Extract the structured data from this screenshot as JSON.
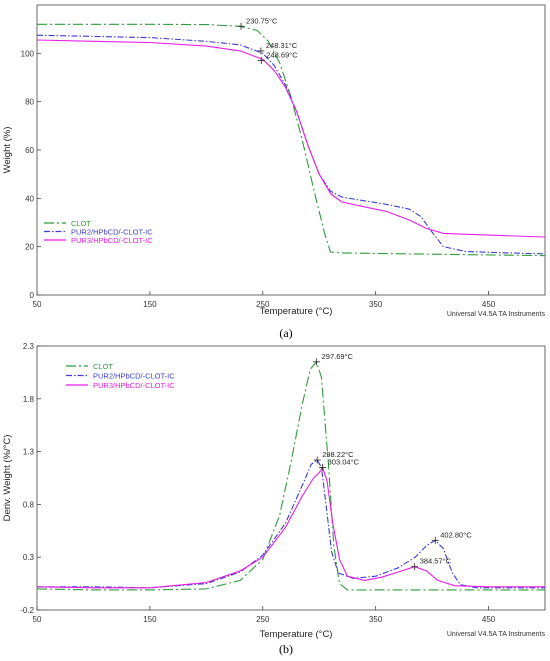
{
  "chart_data": [
    {
      "id": "a",
      "type": "line",
      "xlabel": "Temperature (°C)",
      "ylabel": "Weight (%)",
      "xlim": [
        50,
        500
      ],
      "ylim": [
        0,
        120
      ],
      "xticks": [
        50,
        150,
        250,
        350,
        450
      ],
      "yticks": [
        0,
        20,
        40,
        60,
        80,
        100
      ],
      "grid": false,
      "legend_position": "left",
      "footer": "Universal V4.5A TA Instruments",
      "sublabel": "(a)",
      "series": [
        {
          "name": "CLOT",
          "color": "#2e9c3a",
          "dash": "long-dash-dot",
          "points": [
            [
              50,
              112.0
            ],
            [
              100,
              112.0
            ],
            [
              150,
              112.0
            ],
            [
              200,
              111.9
            ],
            [
              230,
              111.2
            ],
            [
              245,
              109.5
            ],
            [
              255,
              105.0
            ],
            [
              265,
              96.0
            ],
            [
              275,
              82.0
            ],
            [
              285,
              64.0
            ],
            [
              295,
              44.0
            ],
            [
              305,
              25.0
            ],
            [
              310,
              17.8
            ],
            [
              320,
              17.4
            ],
            [
              350,
              17.2
            ],
            [
              400,
              16.9
            ],
            [
              450,
              16.6
            ],
            [
              500,
              16.3
            ]
          ]
        },
        {
          "name": "PUR2/HPbCD/-CLOT-IC",
          "color": "#3b3bd6",
          "dash": "dash-dot",
          "points": [
            [
              50,
              107.5
            ],
            [
              100,
              107.0
            ],
            [
              150,
              106.5
            ],
            [
              200,
              105.0
            ],
            [
              230,
              103.5
            ],
            [
              250,
              100.0
            ],
            [
              260,
              95.0
            ],
            [
              270,
              87.0
            ],
            [
              280,
              76.0
            ],
            [
              290,
              62.0
            ],
            [
              300,
              50.0
            ],
            [
              310,
              43.0
            ],
            [
              320,
              40.5
            ],
            [
              340,
              39.0
            ],
            [
              360,
              37.5
            ],
            [
              380,
              35.5
            ],
            [
              390,
              32.5
            ],
            [
              400,
              26.0
            ],
            [
              410,
              20.0
            ],
            [
              430,
              18.0
            ],
            [
              460,
              17.5
            ],
            [
              500,
              17.0
            ]
          ]
        },
        {
          "name": "PUR3/HPbCD/-CLOT-IC",
          "color": "#e61ee6",
          "dash": "solid",
          "points": [
            [
              50,
              105.5
            ],
            [
              100,
              105.0
            ],
            [
              150,
              104.5
            ],
            [
              200,
              103.0
            ],
            [
              230,
              101.0
            ],
            [
              250,
              97.5
            ],
            [
              260,
              93.0
            ],
            [
              270,
              86.0
            ],
            [
              280,
              76.0
            ],
            [
              290,
              62.0
            ],
            [
              300,
              50.0
            ],
            [
              310,
              42.0
            ],
            [
              320,
              38.5
            ],
            [
              340,
              36.5
            ],
            [
              360,
              34.5
            ],
            [
              380,
              31.0
            ],
            [
              395,
              27.5
            ],
            [
              410,
              25.5
            ],
            [
              450,
              24.8
            ],
            [
              500,
              24.0
            ]
          ]
        }
      ],
      "annotations": [
        {
          "text": "230.75°C",
          "x": 230.75,
          "y": 111.2
        },
        {
          "text": "248.31°C",
          "x": 248.31,
          "y": 101.0
        },
        {
          "text": "248.69°C",
          "x": 248.69,
          "y": 97.0
        }
      ]
    },
    {
      "id": "b",
      "type": "line",
      "xlabel": "Temperature (°C)",
      "ylabel": "Deriv. Weight (%/°C)",
      "xlim": [
        50,
        500
      ],
      "ylim": [
        -0.2,
        2.3
      ],
      "xticks": [
        50,
        150,
        250,
        350,
        450
      ],
      "yticks": [
        -0.2,
        0.3,
        0.8,
        1.3,
        1.8,
        2.3
      ],
      "grid": false,
      "legend_position": "top-left",
      "footer": "Universal V4.5A TA Instruments",
      "sublabel": "(b)",
      "series": [
        {
          "name": "CLOT",
          "color": "#2e9c3a",
          "dash": "long-dash-dot",
          "points": [
            [
              50,
              0.0
            ],
            [
              100,
              -0.01
            ],
            [
              150,
              -0.01
            ],
            [
              200,
              0.0
            ],
            [
              230,
              0.08
            ],
            [
              250,
              0.28
            ],
            [
              265,
              0.7
            ],
            [
              275,
              1.2
            ],
            [
              285,
              1.75
            ],
            [
              292,
              2.08
            ],
            [
              297.69,
              2.15
            ],
            [
              302,
              2.0
            ],
            [
              308,
              1.2
            ],
            [
              313,
              0.4
            ],
            [
              318,
              0.05
            ],
            [
              325,
              -0.01
            ],
            [
              350,
              -0.01
            ],
            [
              400,
              -0.01
            ],
            [
              500,
              -0.01
            ]
          ]
        },
        {
          "name": "PUR2/HPbCD/-CLOT-IC",
          "color": "#3b3bd6",
          "dash": "dash-dot",
          "points": [
            [
              50,
              0.02
            ],
            [
              100,
              0.02
            ],
            [
              150,
              0.01
            ],
            [
              200,
              0.05
            ],
            [
              230,
              0.16
            ],
            [
              250,
              0.32
            ],
            [
              270,
              0.62
            ],
            [
              285,
              0.98
            ],
            [
              293,
              1.18
            ],
            [
              298.22,
              1.22
            ],
            [
              302,
              1.15
            ],
            [
              306,
              0.8
            ],
            [
              311,
              0.35
            ],
            [
              317,
              0.15
            ],
            [
              330,
              0.1
            ],
            [
              350,
              0.12
            ],
            [
              370,
              0.2
            ],
            [
              385,
              0.3
            ],
            [
              395,
              0.41
            ],
            [
              402.8,
              0.46
            ],
            [
              410,
              0.38
            ],
            [
              418,
              0.15
            ],
            [
              425,
              0.04
            ],
            [
              440,
              0.01
            ],
            [
              500,
              0.01
            ]
          ]
        },
        {
          "name": "PUR3/HPbCD/-CLOT-IC",
          "color": "#e61ee6",
          "dash": "solid",
          "points": [
            [
              50,
              0.02
            ],
            [
              100,
              0.01
            ],
            [
              150,
              0.01
            ],
            [
              200,
              0.06
            ],
            [
              230,
              0.17
            ],
            [
              250,
              0.3
            ],
            [
              270,
              0.58
            ],
            [
              285,
              0.88
            ],
            [
              295,
              1.05
            ],
            [
              300,
              1.1
            ],
            [
              303.04,
              1.15
            ],
            [
              307,
              1.02
            ],
            [
              312,
              0.62
            ],
            [
              318,
              0.28
            ],
            [
              325,
              0.12
            ],
            [
              340,
              0.08
            ],
            [
              355,
              0.11
            ],
            [
              370,
              0.16
            ],
            [
              384.57,
              0.21
            ],
            [
              395,
              0.17
            ],
            [
              405,
              0.08
            ],
            [
              420,
              0.03
            ],
            [
              450,
              0.02
            ],
            [
              500,
              0.02
            ]
          ]
        }
      ],
      "annotations": [
        {
          "text": "297.69°C",
          "x": 297.69,
          "y": 2.15
        },
        {
          "text": "298.22°C",
          "x": 298.22,
          "y": 1.22
        },
        {
          "text": "303.04°C",
          "x": 303.04,
          "y": 1.15
        },
        {
          "text": "402.80°C",
          "x": 402.8,
          "y": 0.46
        },
        {
          "text": "384.57°C",
          "x": 384.57,
          "y": 0.21
        }
      ]
    }
  ]
}
